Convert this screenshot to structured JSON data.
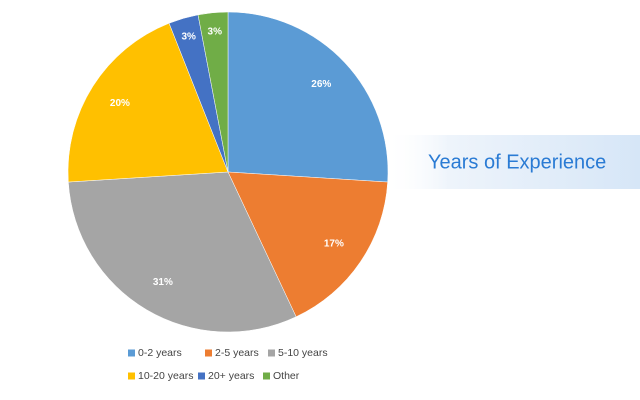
{
  "chart_data": {
    "type": "pie",
    "title": "Years of Experience",
    "categories": [
      "0-2 years",
      "2-5 years",
      "5-10 years",
      "10-20 years",
      "20+ years",
      "Other"
    ],
    "values": [
      26,
      17,
      31,
      20,
      3,
      3
    ],
    "value_labels": [
      "26%",
      "17%",
      "31%",
      "20%",
      "3%",
      "3%"
    ],
    "colors": [
      "#5b9bd5",
      "#ed7d31",
      "#a5a5a5",
      "#ffc000",
      "#4472c4",
      "#70ad47"
    ]
  }
}
